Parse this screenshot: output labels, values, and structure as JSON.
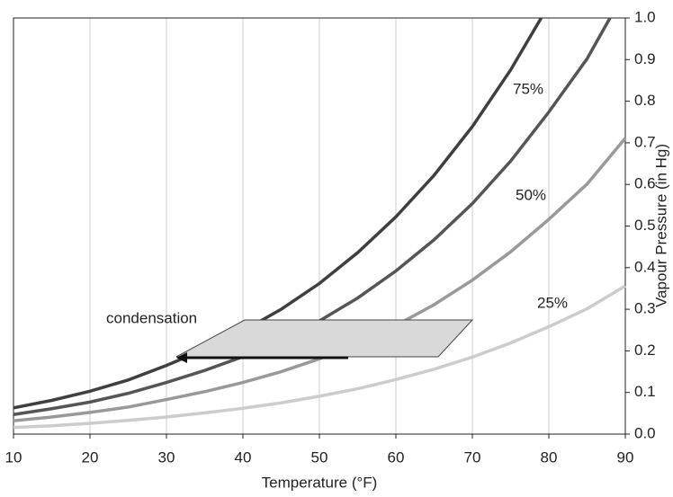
{
  "chart_data": {
    "type": "line",
    "x_label": "Temperature (°F)",
    "y_label": "Vapour Pressure (in Hg)",
    "annotation": "condensation",
    "xlim": [
      10,
      90
    ],
    "xticks": [
      10,
      20,
      30,
      40,
      50,
      60,
      70,
      80,
      90
    ],
    "ylim": [
      0,
      1
    ],
    "yticks": [
      {
        "value": 0,
        "label": "0.0"
      },
      {
        "value": 0.1,
        "label": "0.1"
      },
      {
        "value": 0.2,
        "label": "0.2"
      },
      {
        "value": 0.3,
        "label": "0.3"
      },
      {
        "value": 0.4,
        "label": "0.4"
      },
      {
        "value": 0.5,
        "label": "0.5"
      },
      {
        "value": 0.6,
        "label": "0.6"
      },
      {
        "value": 0.7,
        "label": "0.7"
      },
      {
        "value": 0.8,
        "label": "0.8"
      },
      {
        "value": 0.9,
        "label": "0.9"
      },
      {
        "value": 1,
        "label": "1.0"
      }
    ],
    "grid": "x",
    "series": [
      {
        "color": "#3f3f3f",
        "x": [
          10,
          15,
          20,
          25,
          30,
          35,
          40,
          45,
          50,
          55,
          60,
          65,
          70,
          75,
          79
        ],
        "values": [
          0.063,
          0.081,
          0.103,
          0.13,
          0.165,
          0.204,
          0.248,
          0.3,
          0.362,
          0.436,
          0.522,
          0.622,
          0.739,
          0.875,
          1.0
        ]
      },
      {
        "name": "75%",
        "color": "#555555",
        "x": [
          10,
          15,
          20,
          25,
          30,
          35,
          40,
          45,
          50,
          55,
          60,
          65,
          70,
          75,
          80,
          85,
          88
        ],
        "values": [
          0.047,
          0.061,
          0.077,
          0.098,
          0.124,
          0.153,
          0.186,
          0.225,
          0.272,
          0.327,
          0.392,
          0.467,
          0.554,
          0.656,
          0.774,
          0.902,
          1.0
        ]
      },
      {
        "name": "50%",
        "color": "#999999",
        "x": [
          10,
          15,
          20,
          25,
          30,
          35,
          40,
          45,
          50,
          55,
          60,
          65,
          70,
          75,
          80,
          85,
          90
        ],
        "values": [
          0.032,
          0.041,
          0.052,
          0.065,
          0.083,
          0.102,
          0.124,
          0.15,
          0.181,
          0.218,
          0.261,
          0.311,
          0.37,
          0.438,
          0.516,
          0.601,
          0.711
        ]
      },
      {
        "name": "25%",
        "color": "#cccccc",
        "x": [
          10,
          15,
          20,
          25,
          30,
          35,
          40,
          45,
          50,
          55,
          60,
          65,
          70,
          75,
          80,
          85,
          90
        ],
        "values": [
          0.016,
          0.02,
          0.026,
          0.033,
          0.041,
          0.051,
          0.062,
          0.075,
          0.091,
          0.109,
          0.131,
          0.156,
          0.185,
          0.219,
          0.258,
          0.301,
          0.356
        ]
      }
    ]
  }
}
